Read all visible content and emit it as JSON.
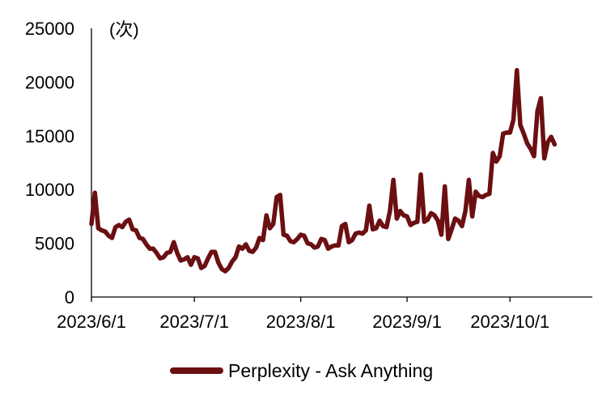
{
  "chart_data": {
    "type": "line",
    "unit_label": "(次)",
    "yticks": [
      "0",
      "5000",
      "10000",
      "15000",
      "20000",
      "25000"
    ],
    "ylim": [
      0,
      25000
    ],
    "xticks": [
      {
        "date": "2023-06-01",
        "label": "2023/6/1"
      },
      {
        "date": "2023-07-01",
        "label": "2023/7/1"
      },
      {
        "date": "2023-08-01",
        "label": "2023/8/1"
      },
      {
        "date": "2023-09-01",
        "label": "2023/9/1"
      },
      {
        "date": "2023-10-01",
        "label": "2023/10/1"
      }
    ],
    "xlim": [
      "2023-06-01",
      "2023-10-25"
    ],
    "grid": false,
    "legend_position": "bottom",
    "series": [
      {
        "name": "Perplexity - Ask Anything",
        "color": "#6b0f12",
        "points": [
          [
            "2023-06-01",
            6800
          ],
          [
            "2023-06-02",
            9700
          ],
          [
            "2023-06-03",
            6400
          ],
          [
            "2023-06-04",
            6200
          ],
          [
            "2023-06-05",
            6100
          ],
          [
            "2023-06-06",
            5700
          ],
          [
            "2023-06-07",
            5500
          ],
          [
            "2023-06-08",
            6500
          ],
          [
            "2023-06-09",
            6700
          ],
          [
            "2023-06-10",
            6500
          ],
          [
            "2023-06-11",
            7000
          ],
          [
            "2023-06-12",
            7200
          ],
          [
            "2023-06-13",
            6300
          ],
          [
            "2023-06-14",
            6200
          ],
          [
            "2023-06-15",
            5500
          ],
          [
            "2023-06-16",
            5400
          ],
          [
            "2023-06-17",
            4900
          ],
          [
            "2023-06-18",
            4500
          ],
          [
            "2023-06-19",
            4500
          ],
          [
            "2023-06-20",
            4100
          ],
          [
            "2023-06-21",
            3600
          ],
          [
            "2023-06-22",
            3700
          ],
          [
            "2023-06-23",
            4100
          ],
          [
            "2023-06-24",
            4200
          ],
          [
            "2023-06-25",
            5100
          ],
          [
            "2023-06-26",
            4100
          ],
          [
            "2023-06-27",
            3400
          ],
          [
            "2023-06-28",
            3500
          ],
          [
            "2023-06-29",
            3700
          ],
          [
            "2023-06-30",
            3000
          ],
          [
            "2023-07-01",
            3700
          ],
          [
            "2023-07-02",
            3600
          ],
          [
            "2023-07-03",
            2700
          ],
          [
            "2023-07-04",
            2900
          ],
          [
            "2023-07-05",
            3600
          ],
          [
            "2023-07-06",
            4200
          ],
          [
            "2023-07-07",
            4200
          ],
          [
            "2023-07-08",
            3200
          ],
          [
            "2023-07-09",
            2600
          ],
          [
            "2023-07-10",
            2400
          ],
          [
            "2023-07-11",
            2700
          ],
          [
            "2023-07-12",
            3300
          ],
          [
            "2023-07-13",
            3700
          ],
          [
            "2023-07-14",
            4700
          ],
          [
            "2023-07-15",
            4500
          ],
          [
            "2023-07-16",
            4900
          ],
          [
            "2023-07-17",
            4300
          ],
          [
            "2023-07-18",
            4200
          ],
          [
            "2023-07-19",
            4600
          ],
          [
            "2023-07-20",
            5500
          ],
          [
            "2023-07-21",
            5300
          ],
          [
            "2023-07-22",
            7600
          ],
          [
            "2023-07-23",
            6400
          ],
          [
            "2023-07-24",
            6800
          ],
          [
            "2023-07-25",
            9300
          ],
          [
            "2023-07-26",
            9500
          ],
          [
            "2023-07-27",
            5800
          ],
          [
            "2023-07-28",
            5700
          ],
          [
            "2023-07-29",
            5200
          ],
          [
            "2023-07-30",
            5100
          ],
          [
            "2023-07-31",
            5400
          ],
          [
            "2023-08-01",
            5800
          ],
          [
            "2023-08-02",
            5700
          ],
          [
            "2023-08-03",
            5000
          ],
          [
            "2023-08-04",
            4900
          ],
          [
            "2023-08-05",
            4600
          ],
          [
            "2023-08-06",
            4700
          ],
          [
            "2023-08-07",
            5400
          ],
          [
            "2023-08-08",
            5300
          ],
          [
            "2023-08-09",
            4500
          ],
          [
            "2023-08-10",
            4700
          ],
          [
            "2023-08-11",
            4800
          ],
          [
            "2023-08-12",
            4800
          ],
          [
            "2023-08-13",
            6600
          ],
          [
            "2023-08-14",
            6800
          ],
          [
            "2023-08-15",
            5100
          ],
          [
            "2023-08-16",
            5300
          ],
          [
            "2023-08-17",
            5900
          ],
          [
            "2023-08-18",
            6000
          ],
          [
            "2023-08-19",
            5900
          ],
          [
            "2023-08-20",
            6200
          ],
          [
            "2023-08-21",
            8500
          ],
          [
            "2023-08-22",
            6300
          ],
          [
            "2023-08-23",
            6400
          ],
          [
            "2023-08-24",
            7100
          ],
          [
            "2023-08-25",
            6600
          ],
          [
            "2023-08-26",
            6500
          ],
          [
            "2023-08-27",
            8000
          ],
          [
            "2023-08-28",
            10900
          ],
          [
            "2023-08-29",
            7300
          ],
          [
            "2023-08-30",
            8000
          ],
          [
            "2023-08-31",
            7600
          ],
          [
            "2023-09-01",
            7500
          ],
          [
            "2023-09-02",
            6700
          ],
          [
            "2023-09-03",
            6900
          ],
          [
            "2023-09-04",
            7000
          ],
          [
            "2023-09-05",
            11400
          ],
          [
            "2023-09-06",
            7000
          ],
          [
            "2023-09-07",
            7200
          ],
          [
            "2023-09-08",
            7800
          ],
          [
            "2023-09-09",
            7600
          ],
          [
            "2023-09-10",
            7100
          ],
          [
            "2023-09-11",
            5800
          ],
          [
            "2023-09-12",
            10300
          ],
          [
            "2023-09-13",
            5400
          ],
          [
            "2023-09-14",
            6300
          ],
          [
            "2023-09-15",
            7300
          ],
          [
            "2023-09-16",
            7100
          ],
          [
            "2023-09-17",
            6600
          ],
          [
            "2023-09-18",
            8000
          ],
          [
            "2023-09-19",
            10900
          ],
          [
            "2023-09-20",
            7500
          ],
          [
            "2023-09-21",
            9800
          ],
          [
            "2023-09-22",
            9400
          ],
          [
            "2023-09-23",
            9300
          ],
          [
            "2023-09-24",
            9500
          ],
          [
            "2023-09-25",
            9600
          ],
          [
            "2023-09-26",
            13400
          ],
          [
            "2023-09-27",
            12600
          ],
          [
            "2023-09-28",
            13100
          ],
          [
            "2023-09-29",
            15200
          ],
          [
            "2023-09-30",
            15300
          ],
          [
            "2023-10-01",
            15300
          ],
          [
            "2023-10-02",
            16500
          ],
          [
            "2023-10-03",
            21100
          ],
          [
            "2023-10-04",
            16000
          ],
          [
            "2023-10-05",
            15200
          ],
          [
            "2023-10-06",
            14300
          ],
          [
            "2023-10-07",
            13800
          ],
          [
            "2023-10-08",
            13100
          ],
          [
            "2023-10-09",
            17300
          ],
          [
            "2023-10-10",
            18500
          ],
          [
            "2023-10-11",
            12900
          ],
          [
            "2023-10-12",
            14400
          ],
          [
            "2023-10-13",
            14900
          ],
          [
            "2023-10-14",
            14200
          ]
        ]
      }
    ]
  }
}
